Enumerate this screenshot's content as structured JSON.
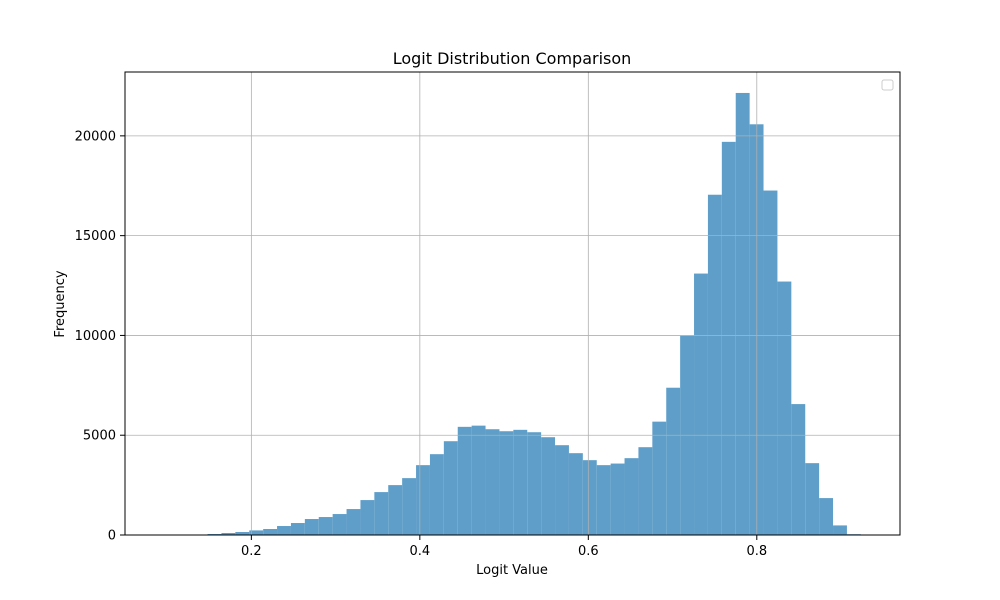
{
  "chart_data": {
    "type": "bar",
    "title": "Logit Distribution Comparison",
    "xlabel": "Logit Value",
    "ylabel": "Frequency",
    "xlim": [
      0.05,
      0.97
    ],
    "ylim": [
      0,
      23200
    ],
    "x_ticks": [
      0.2,
      0.4,
      0.6,
      0.8
    ],
    "y_ticks": [
      0,
      5000,
      10000,
      15000,
      20000
    ],
    "grid": true,
    "legend": "top-right",
    "bar_color": "#5f9ec9",
    "bin_edges": [
      0.115,
      0.1315,
      0.148,
      0.1645,
      0.181,
      0.1975,
      0.214,
      0.2305,
      0.247,
      0.2635,
      0.28,
      0.2965,
      0.313,
      0.3295,
      0.346,
      0.3625,
      0.379,
      0.3955,
      0.412,
      0.4285,
      0.445,
      0.4615,
      0.478,
      0.4945,
      0.511,
      0.5275,
      0.544,
      0.5605,
      0.577,
      0.5935,
      0.61,
      0.6265,
      0.643,
      0.6595,
      0.676,
      0.6925,
      0.709,
      0.7255,
      0.742,
      0.7585,
      0.775,
      0.7915,
      0.808,
      0.8245,
      0.841,
      0.8575,
      0.874,
      0.8905,
      0.907,
      0.9235,
      0.94
    ],
    "values": [
      10,
      20,
      50,
      100,
      150,
      230,
      300,
      450,
      600,
      800,
      900,
      1050,
      1300,
      1750,
      2150,
      2500,
      2850,
      3500,
      4050,
      4700,
      5420,
      5480,
      5300,
      5200,
      5270,
      5150,
      4900,
      4500,
      4100,
      3750,
      3500,
      3580,
      3850,
      4400,
      5680,
      7380,
      9980,
      13100,
      17050,
      19700,
      22150,
      20580,
      17260,
      12700,
      6560,
      3600,
      1850,
      480,
      40,
      5
    ]
  }
}
